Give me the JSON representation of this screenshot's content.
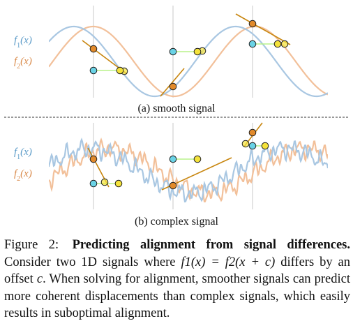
{
  "figure": {
    "panel_a": {
      "label_f1": "f",
      "label_f1_sub": "1",
      "label_f1_arg": "(x)",
      "label_f2": "f",
      "label_f2_sub": "2",
      "label_f2_arg": "(x)",
      "subcaption": "(a) smooth signal"
    },
    "panel_b": {
      "label_f1": "f",
      "label_f1_sub": "1",
      "label_f1_arg": "(x)",
      "label_f2": "f",
      "label_f2_sub": "2",
      "label_f2_arg": "(x)",
      "subcaption": "(b) complex signal"
    },
    "colors": {
      "f1": "#a9c7e2",
      "f2": "#f2c09a",
      "f1_label": "#5b9bc8",
      "f2_label": "#d98a4a",
      "sample_f1": "#6ad3e6",
      "sample_f2": "#e28a2a",
      "displaced": "#f4e23a",
      "tangent": "#c8860f",
      "offset_line": "#b8f28a",
      "guide": "#cccccc"
    }
  },
  "caption": {
    "label": "Figure 2:",
    "title": "Predicting alignment from signal differences.",
    "body_1": "Consider two 1D signals where ",
    "math": "f1(x) = f2(x + c)",
    "body_2": " differs by an offset ",
    "math_c": "c",
    "body_3": ". When solving for alignment, smoother signals can predict more coherent displacements than complex signals, which easily results in suboptimal alignment."
  }
}
